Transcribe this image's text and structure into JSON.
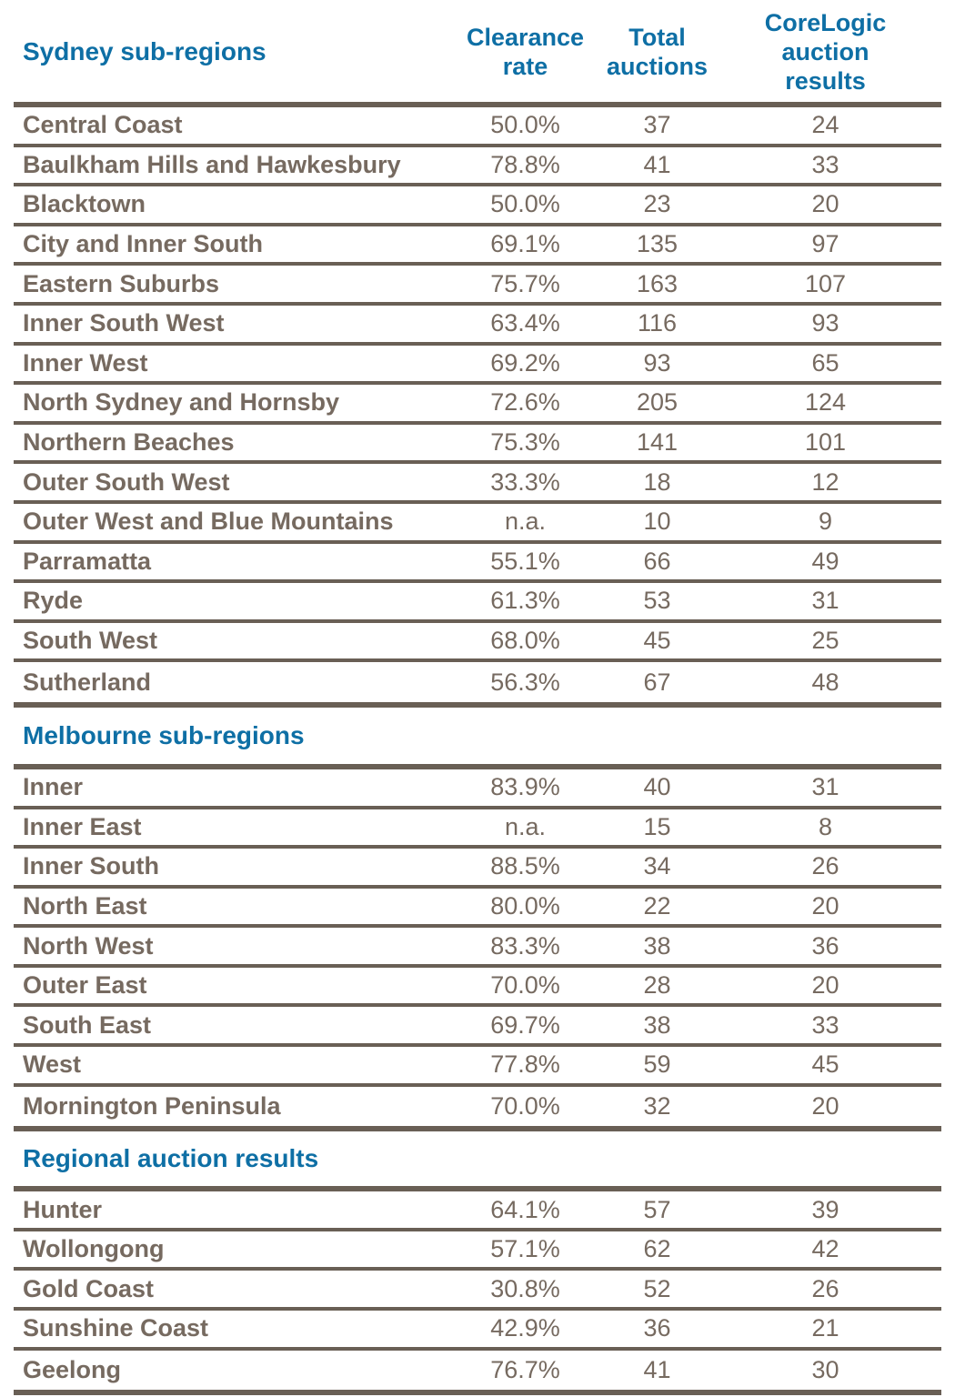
{
  "columns": [
    "Clearance rate",
    "Total auctions",
    "CoreLogic auction results"
  ],
  "colors": {
    "heading_blue": "#0e6fa5",
    "text_brown": "#766a60",
    "line_brown": "#695f55"
  },
  "sections": [
    {
      "title": "Sydney sub-regions",
      "rows": [
        {
          "region": "Central Coast",
          "clearance_rate": "50.0%",
          "total_auctions": 37,
          "corelogic_results": 24
        },
        {
          "region": "Baulkham Hills and Hawkesbury",
          "clearance_rate": "78.8%",
          "total_auctions": 41,
          "corelogic_results": 33
        },
        {
          "region": "Blacktown",
          "clearance_rate": "50.0%",
          "total_auctions": 23,
          "corelogic_results": 20
        },
        {
          "region": "City and Inner South",
          "clearance_rate": "69.1%",
          "total_auctions": 135,
          "corelogic_results": 97
        },
        {
          "region": "Eastern Suburbs",
          "clearance_rate": "75.7%",
          "total_auctions": 163,
          "corelogic_results": 107
        },
        {
          "region": "Inner South West",
          "clearance_rate": "63.4%",
          "total_auctions": 116,
          "corelogic_results": 93
        },
        {
          "region": "Inner West",
          "clearance_rate": "69.2%",
          "total_auctions": 93,
          "corelogic_results": 65
        },
        {
          "region": "North Sydney and Hornsby",
          "clearance_rate": "72.6%",
          "total_auctions": 205,
          "corelogic_results": 124
        },
        {
          "region": "Northern Beaches",
          "clearance_rate": "75.3%",
          "total_auctions": 141,
          "corelogic_results": 101
        },
        {
          "region": "Outer South West",
          "clearance_rate": "33.3%",
          "total_auctions": 18,
          "corelogic_results": 12
        },
        {
          "region": "Outer West and Blue Mountains",
          "clearance_rate": "n.a.",
          "total_auctions": 10,
          "corelogic_results": 9
        },
        {
          "region": "Parramatta",
          "clearance_rate": "55.1%",
          "total_auctions": 66,
          "corelogic_results": 49
        },
        {
          "region": "Ryde",
          "clearance_rate": "61.3%",
          "total_auctions": 53,
          "corelogic_results": 31
        },
        {
          "region": "South West",
          "clearance_rate": "68.0%",
          "total_auctions": 45,
          "corelogic_results": 25
        },
        {
          "region": "Sutherland",
          "clearance_rate": "56.3%",
          "total_auctions": 67,
          "corelogic_results": 48
        }
      ]
    },
    {
      "title": "Melbourne sub-regions",
      "rows": [
        {
          "region": "Inner",
          "clearance_rate": "83.9%",
          "total_auctions": 40,
          "corelogic_results": 31
        },
        {
          "region": "Inner East",
          "clearance_rate": "n.a.",
          "total_auctions": 15,
          "corelogic_results": 8
        },
        {
          "region": "Inner South",
          "clearance_rate": "88.5%",
          "total_auctions": 34,
          "corelogic_results": 26
        },
        {
          "region": "North East",
          "clearance_rate": "80.0%",
          "total_auctions": 22,
          "corelogic_results": 20
        },
        {
          "region": "North West",
          "clearance_rate": "83.3%",
          "total_auctions": 38,
          "corelogic_results": 36
        },
        {
          "region": "Outer East",
          "clearance_rate": "70.0%",
          "total_auctions": 28,
          "corelogic_results": 20
        },
        {
          "region": "South East",
          "clearance_rate": "69.7%",
          "total_auctions": 38,
          "corelogic_results": 33
        },
        {
          "region": "West",
          "clearance_rate": "77.8%",
          "total_auctions": 59,
          "corelogic_results": 45
        },
        {
          "region": "Mornington Peninsula",
          "clearance_rate": "70.0%",
          "total_auctions": 32,
          "corelogic_results": 20
        }
      ]
    },
    {
      "title": "Regional auction results",
      "rows": [
        {
          "region": "Hunter",
          "clearance_rate": "64.1%",
          "total_auctions": 57,
          "corelogic_results": 39
        },
        {
          "region": "Wollongong",
          "clearance_rate": "57.1%",
          "total_auctions": 62,
          "corelogic_results": 42
        },
        {
          "region": "Gold Coast",
          "clearance_rate": "30.8%",
          "total_auctions": 52,
          "corelogic_results": 26
        },
        {
          "region": "Sunshine Coast",
          "clearance_rate": "42.9%",
          "total_auctions": 36,
          "corelogic_results": 21
        },
        {
          "region": "Geelong",
          "clearance_rate": "76.7%",
          "total_auctions": 41,
          "corelogic_results": 30
        }
      ]
    }
  ]
}
